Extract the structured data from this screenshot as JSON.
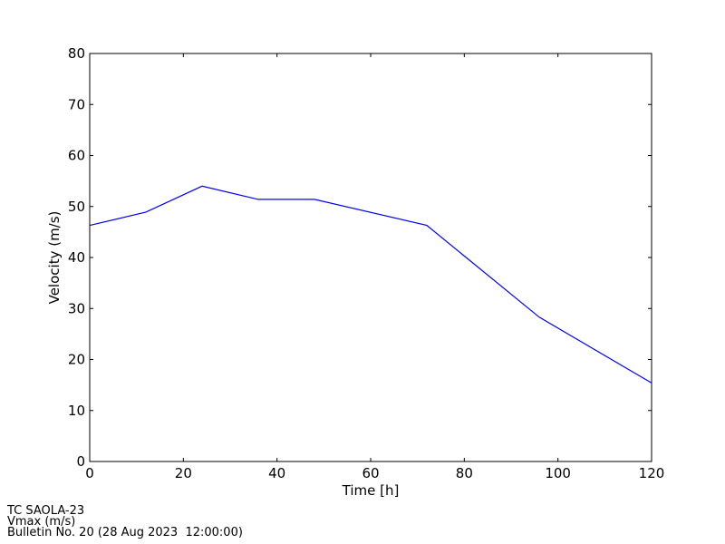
{
  "chart_data": {
    "type": "line",
    "title": "",
    "xlabel": "Time [h]",
    "ylabel": "Velocity (m/s)",
    "xlim": [
      0,
      120
    ],
    "ylim": [
      0,
      80
    ],
    "xticks": [
      0,
      20,
      40,
      60,
      80,
      100,
      120
    ],
    "yticks": [
      0,
      10,
      20,
      30,
      40,
      50,
      60,
      70,
      80
    ],
    "grid": false,
    "series": [
      {
        "color": "#0000ff",
        "x": [
          0,
          12,
          24,
          36,
          48,
          72,
          96,
          120
        ],
        "y": [
          46.3,
          48.9,
          54.0,
          51.4,
          51.4,
          46.3,
          28.3,
          15.4
        ]
      }
    ]
  },
  "footer": {
    "line1": "TC SAOLA-23",
    "line2": "Vmax (m/s)",
    "line3": "Bulletin No. 20 (28 Aug 2023  12:00:00)"
  }
}
